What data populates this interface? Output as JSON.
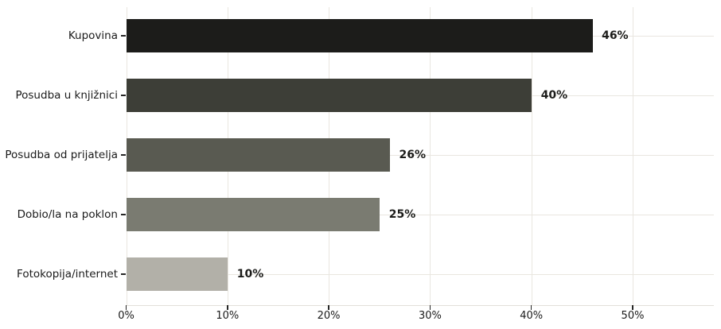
{
  "chart_data": {
    "type": "bar",
    "orientation": "horizontal",
    "title": "",
    "xlabel": "",
    "ylabel": "",
    "categories": [
      "Kupovina",
      "Posudba u knjižnici",
      "Posudba od prijatelja",
      "Dobio/la na poklon",
      "Fotokopija/internet"
    ],
    "values": [
      46,
      40,
      26,
      25,
      10
    ],
    "value_labels": [
      "46%",
      "40%",
      "26%",
      "25%",
      "10%"
    ],
    "bar_colors": [
      "#1c1c1a",
      "#3d3e37",
      "#595a51",
      "#7a7b71",
      "#b2b0a8"
    ],
    "xticks": [
      0,
      10,
      20,
      30,
      40,
      50
    ],
    "xtick_labels": [
      "0%",
      "10%",
      "20%",
      "30%",
      "40%",
      "50%"
    ],
    "xlim": [
      0,
      58
    ],
    "grid": true,
    "legend": false,
    "grid_color": "#e9e6e0",
    "tick_color": "#262626",
    "text_color": "#1a1a1a",
    "background_color": "#ffffff"
  }
}
